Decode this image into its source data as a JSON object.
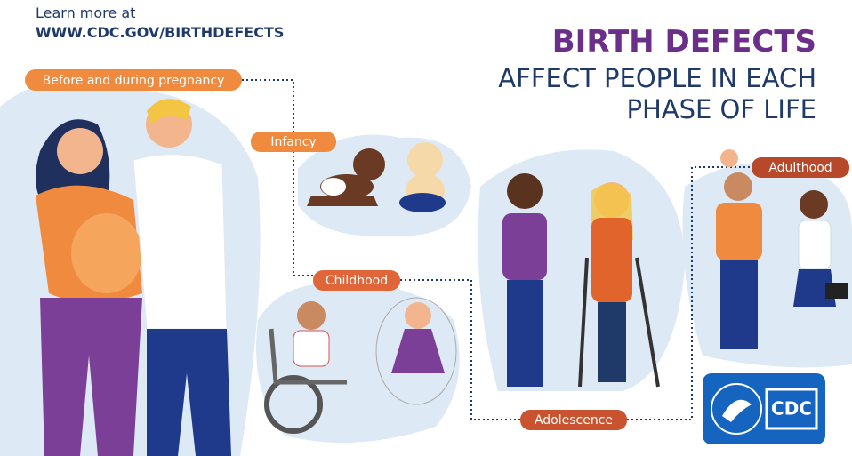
{
  "header": {
    "intro": "Learn more at",
    "url": "WWW.CDC.GOV/BIRTHDEFECTS"
  },
  "title": {
    "line1": "BIRTH DEFECTS",
    "line2": "AFFECT PEOPLE IN EACH",
    "line3": "PHASE OF LIFE"
  },
  "phases": [
    "Before and during pregnancy",
    "Infancy",
    "Childhood",
    "Adolescence",
    "Adulthood"
  ],
  "logo": {
    "text": "CDC"
  }
}
